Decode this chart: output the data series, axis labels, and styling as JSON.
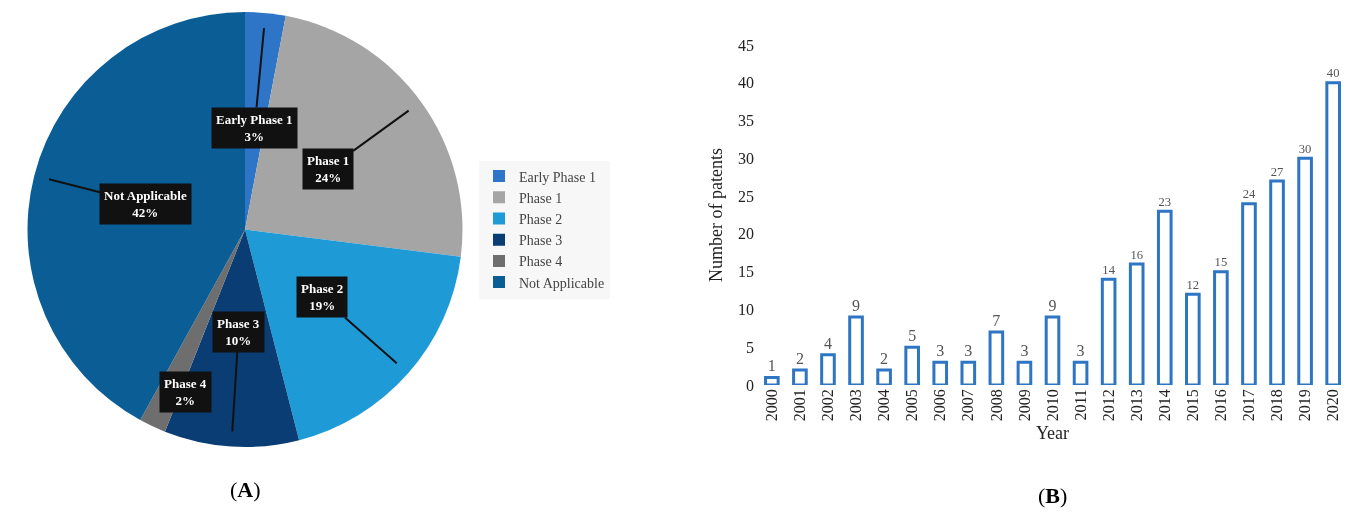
{
  "chart_data": [
    {
      "type": "pie",
      "categories": [
        "Early Phase 1",
        "Phase 1",
        "Phase 2",
        "Phase 3",
        "Phase 4",
        "Not Applicable"
      ],
      "values": [
        3,
        24,
        19,
        10,
        2,
        42
      ],
      "colors": [
        "#2e75c8",
        "#a5a5a5",
        "#1e9bd7",
        "#0a3d73",
        "#6e6e6e",
        "#0b5d96"
      ],
      "value_labels": [
        "3%",
        "24%",
        "19%",
        "10%",
        "2%",
        "42%"
      ],
      "legend": "right",
      "annotations": [
        "(A)"
      ]
    },
    {
      "type": "bar",
      "categories": [
        "2000",
        "2001",
        "2002",
        "2003",
        "2004",
        "2005",
        "2006",
        "2007",
        "2008",
        "2009",
        "2010",
        "2011",
        "2012",
        "2013",
        "2014",
        "2015",
        "2016",
        "2017",
        "2018",
        "2019",
        "2020"
      ],
      "values": [
        1,
        2,
        4,
        9,
        2,
        5,
        3,
        3,
        7,
        3,
        9,
        3,
        14,
        16,
        23,
        12,
        15,
        24,
        27,
        30,
        40
      ],
      "color": "#2e75c3",
      "xlabel": "Year",
      "ylabel": "Number of patents",
      "ylim": [
        0,
        45
      ],
      "yticks": [
        0,
        5,
        10,
        15,
        20,
        25,
        30,
        35,
        40,
        45
      ],
      "data_labels": true,
      "annotations": [
        "(B)"
      ]
    }
  ]
}
